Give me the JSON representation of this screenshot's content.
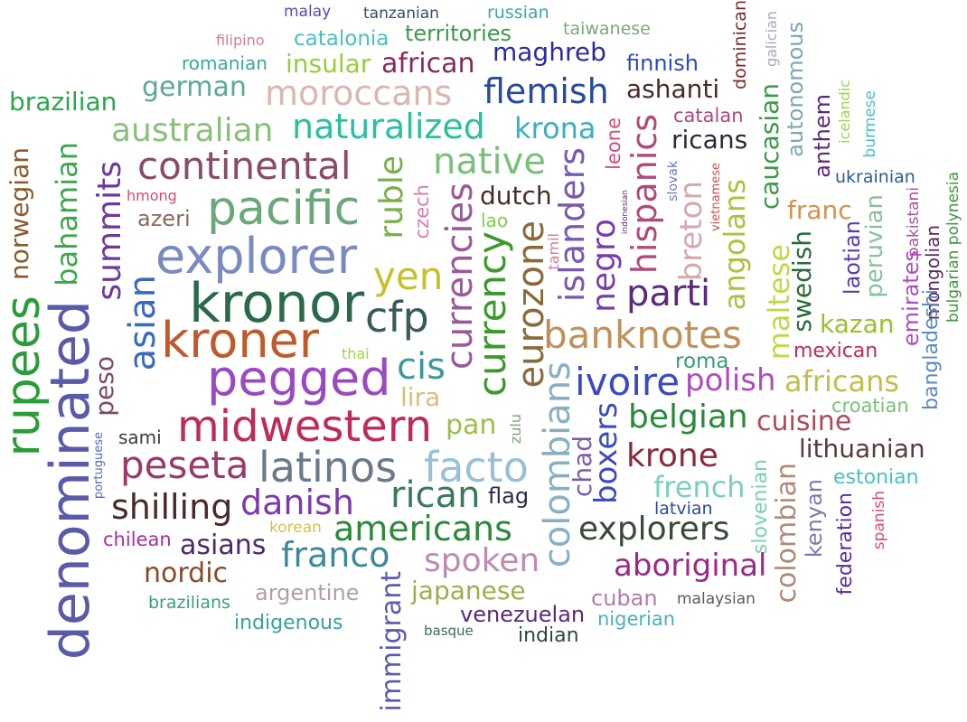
{
  "words": [
    {
      "text": "rupees",
      "color": "#2a9d3a"
    },
    {
      "text": "denominated",
      "color": "#5a5aa8"
    },
    {
      "text": "norwegian",
      "color": "#8a5a2a"
    },
    {
      "text": "bahamian",
      "color": "#3aa84a"
    },
    {
      "text": "brazilian",
      "color": "#2aa84a"
    },
    {
      "text": "summits",
      "color": "#6a3aa0"
    },
    {
      "text": "asian",
      "color": "#3a6ac0"
    },
    {
      "text": "peso",
      "color": "#7a4a6a"
    },
    {
      "text": "portuguese",
      "color": "#4a6ac0"
    },
    {
      "text": "sami",
      "color": "#3a3a3a"
    },
    {
      "text": "malay",
      "color": "#5a4ab0"
    },
    {
      "text": "tanzanian",
      "color": "#3a4a6a"
    },
    {
      "text": "russian",
      "color": "#3aa8b0"
    },
    {
      "text": "filipino",
      "color": "#d87a9a"
    },
    {
      "text": "catalonia",
      "color": "#4ac0c0"
    },
    {
      "text": "territories",
      "color": "#3a9a4a"
    },
    {
      "text": "taiwanese",
      "color": "#7aa87a"
    },
    {
      "text": "romanian",
      "color": "#3aa89a"
    },
    {
      "text": "insular",
      "color": "#9acc3a"
    },
    {
      "text": "african",
      "color": "#8a2a5a"
    },
    {
      "text": "maghreb",
      "color": "#2a2aa0"
    },
    {
      "text": "finnish",
      "color": "#2a4ac0"
    },
    {
      "text": "german",
      "color": "#5aa89a"
    },
    {
      "text": "moroccans",
      "color": "#d8b8b0"
    },
    {
      "text": "flemish",
      "color": "#2a4aa0"
    },
    {
      "text": "ashanti",
      "color": "#4a2a2a"
    },
    {
      "text": "dominican",
      "color": "#7a2a2a"
    },
    {
      "text": "galician",
      "color": "#a8a8c0"
    },
    {
      "text": "autonomous",
      "color": "#7aa8b0"
    },
    {
      "text": "australian",
      "color": "#8ac07a"
    },
    {
      "text": "naturalized",
      "color": "#2ac0a0"
    },
    {
      "text": "krona",
      "color": "#3ab0c0"
    },
    {
      "text": "catalan",
      "color": "#b04a7a"
    },
    {
      "text": "ricans",
      "color": "#2a2a3a"
    },
    {
      "text": "continental",
      "color": "#8a4a6a"
    },
    {
      "text": "native",
      "color": "#7ac07a"
    },
    {
      "text": "hispanics",
      "color": "#b04a7a"
    },
    {
      "text": "leone",
      "color": "#d84a7a"
    },
    {
      "text": "caucasian",
      "color": "#3a9a4a"
    },
    {
      "text": "anthem",
      "color": "#5a2a7a"
    },
    {
      "text": "icelandic",
      "color": "#9ad84a"
    },
    {
      "text": "burmese",
      "color": "#4ac0c0"
    },
    {
      "text": "ukrainian",
      "color": "#2a5a9a"
    },
    {
      "text": "pacific",
      "color": "#6aa87a"
    },
    {
      "text": "ruble",
      "color": "#7ab04a"
    },
    {
      "text": "czech",
      "color": "#d87ab0"
    },
    {
      "text": "currencies",
      "color": "#9a5a9a"
    },
    {
      "text": "dutch",
      "color": "#4a2a2a"
    },
    {
      "text": "islanders",
      "color": "#7a5ab0"
    },
    {
      "text": "indonesian",
      "color": "#5a2a7a"
    },
    {
      "text": "slovak",
      "color": "#6a7ab0"
    },
    {
      "text": "vietnamese",
      "color": "#d84a4a"
    },
    {
      "text": "breton",
      "color": "#d8a8b0"
    },
    {
      "text": "angolans",
      "color": "#b0c03a"
    },
    {
      "text": "franc",
      "color": "#d8904a"
    },
    {
      "text": "pakistani",
      "color": "#b04aa0"
    },
    {
      "text": "bulgarian polynesia",
      "color": "#3a9a3a"
    },
    {
      "text": "hmong",
      "color": "#d84a6a"
    },
    {
      "text": "azeri",
      "color": "#8a6a5a"
    },
    {
      "text": "explorer",
      "color": "#7a8ac0"
    },
    {
      "text": "lao",
      "color": "#7ad04a"
    },
    {
      "text": "tamil",
      "color": "#d87a9a"
    },
    {
      "text": "negro",
      "color": "#7a3ab0"
    },
    {
      "text": "swedish",
      "color": "#2a6a3a"
    },
    {
      "text": "laotian",
      "color": "#5a3ab0"
    },
    {
      "text": "peruvian",
      "color": "#8ac0a0"
    },
    {
      "text": "emirates",
      "color": "#b04ac0"
    },
    {
      "text": "mongolian",
      "color": "#5a2a5a"
    },
    {
      "text": "kronor",
      "color": "#2a6a4a"
    },
    {
      "text": "yen",
      "color": "#c8c02a"
    },
    {
      "text": "cfp",
      "color": "#3a5a5a"
    },
    {
      "text": "currency",
      "color": "#3a9a2a"
    },
    {
      "text": "eurozone",
      "color": "#8a6a3a"
    },
    {
      "text": "parti",
      "color": "#5a2a7a"
    },
    {
      "text": "maltese",
      "color": "#c0d84a"
    },
    {
      "text": "kazan",
      "color": "#9ac02a"
    },
    {
      "text": "bangladeshi",
      "color": "#5a8ac0"
    },
    {
      "text": "kroner",
      "color": "#c05a2a"
    },
    {
      "text": "banknotes",
      "color": "#c0905a"
    },
    {
      "text": "mexican",
      "color": "#c02a5a"
    },
    {
      "text": "thai",
      "color": "#9ad84a"
    },
    {
      "text": "pegged",
      "color": "#9a4ac0"
    },
    {
      "text": "cis",
      "color": "#3a9a9a"
    },
    {
      "text": "colombians",
      "color": "#8ab0c0"
    },
    {
      "text": "roma",
      "color": "#3a9a7a"
    },
    {
      "text": "lira",
      "color": "#d8c07a"
    },
    {
      "text": "ivoire",
      "color": "#3a4ac0"
    },
    {
      "text": "polish",
      "color": "#b04ac0"
    },
    {
      "text": "africans",
      "color": "#c0c04a"
    },
    {
      "text": "croatian",
      "color": "#7ac07a"
    },
    {
      "text": "midwestern",
      "color": "#c02a5a"
    },
    {
      "text": "pan",
      "color": "#9ac04a"
    },
    {
      "text": "zulu",
      "color": "#7aa07a"
    },
    {
      "text": "boxers",
      "color": "#3a4ac0"
    },
    {
      "text": "belgian",
      "color": "#2a8a3a"
    },
    {
      "text": "cuisine",
      "color": "#b04a5a"
    },
    {
      "text": "lithuanian",
      "color": "#5a3a3a"
    },
    {
      "text": "peseta",
      "color": "#9a3a6a"
    },
    {
      "text": "latinos",
      "color": "#6a7a8a"
    },
    {
      "text": "facto",
      "color": "#9ac0d8"
    },
    {
      "text": "chad",
      "color": "#7a5ab0"
    },
    {
      "text": "krone",
      "color": "#8a2a3a"
    },
    {
      "text": "slovenian",
      "color": "#7ad0b0"
    },
    {
      "text": "colombian",
      "color": "#b08a7a"
    },
    {
      "text": "estonian",
      "color": "#4ac0c0"
    },
    {
      "text": "kenyan",
      "color": "#7a7ab0"
    },
    {
      "text": "federation",
      "color": "#5a2aa0"
    },
    {
      "text": "spanish",
      "color": "#d84a7a"
    },
    {
      "text": "shilling",
      "color": "#4a2a2a"
    },
    {
      "text": "danish",
      "color": "#7a3ab0"
    },
    {
      "text": "rican",
      "color": "#3a7a5a"
    },
    {
      "text": "flag",
      "color": "#2a2a4a"
    },
    {
      "text": "french",
      "color": "#7ad0c0"
    },
    {
      "text": "latvian",
      "color": "#2a4aa0"
    },
    {
      "text": "korean",
      "color": "#d8c04a"
    },
    {
      "text": "americans",
      "color": "#2a8a3a"
    },
    {
      "text": "explorers",
      "color": "#3a4a3a"
    },
    {
      "text": "chilean",
      "color": "#b02aa0"
    },
    {
      "text": "asians",
      "color": "#4a2a6a"
    },
    {
      "text": "franco",
      "color": "#3a8a9a"
    },
    {
      "text": "nordic",
      "color": "#8a4a2a"
    },
    {
      "text": "immigrant",
      "color": "#5a5ab0"
    },
    {
      "text": "spoken",
      "color": "#c08ab0"
    },
    {
      "text": "aboriginal",
      "color": "#9a2a8a"
    },
    {
      "text": "argentine",
      "color": "#b0a0a0"
    },
    {
      "text": "japanese",
      "color": "#9ab04a"
    },
    {
      "text": "cuban",
      "color": "#b07ab0"
    },
    {
      "text": "malaysian",
      "color": "#5a5a5a"
    },
    {
      "text": "brazilians",
      "color": "#3aa07a"
    },
    {
      "text": "indigenous",
      "color": "#3aa0a0"
    },
    {
      "text": "venezuelan",
      "color": "#5a2a7a"
    },
    {
      "text": "nigerian",
      "color": "#4ab0c0"
    },
    {
      "text": "basque",
      "color": "#3a6a5a"
    },
    {
      "text": "indian",
      "color": "#2a4a3a"
    }
  ]
}
